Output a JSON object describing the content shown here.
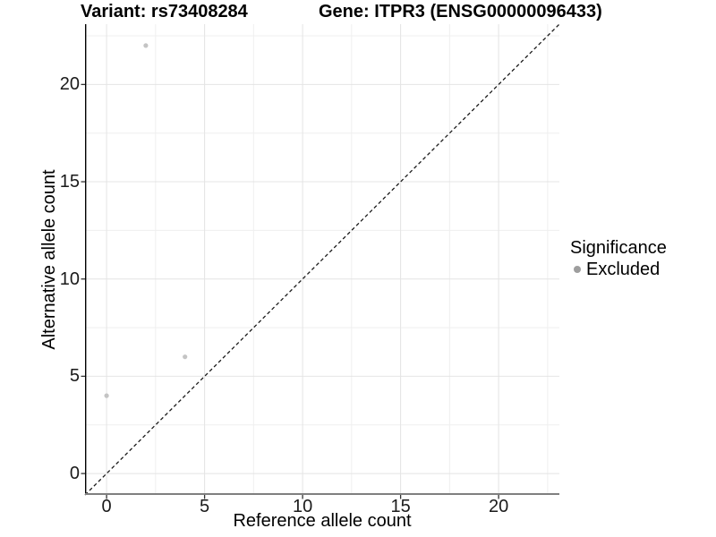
{
  "titles": {
    "left": "Variant: rs73408284",
    "right": "Gene: ITPR3 (ENSG00000096433)"
  },
  "axes": {
    "x_label": "Reference allele count",
    "y_label": "Alternative allele count"
  },
  "legend": {
    "title": "Significance",
    "items": [
      {
        "label": "Excluded",
        "color": "#9e9e9e"
      }
    ]
  },
  "chart_data": {
    "type": "scatter",
    "title": "Variant: rs73408284 / Gene: ITPR3 (ENSG00000096433)",
    "xlabel": "Reference allele count",
    "ylabel": "Alternative allele count",
    "xlim": [
      -1.1,
      23.1
    ],
    "ylim": [
      -1.1,
      23.1
    ],
    "x_ticks": [
      0,
      5,
      10,
      15,
      20
    ],
    "y_ticks": [
      0,
      5,
      10,
      15,
      20
    ],
    "x_minor_ticks": [
      2.5,
      7.5,
      12.5,
      17.5,
      22.5
    ],
    "y_minor_ticks": [
      2.5,
      7.5,
      12.5,
      17.5,
      22.5
    ],
    "grid": true,
    "legend_position": "right",
    "reference_line": {
      "type": "identity",
      "slope": 1,
      "intercept": 0,
      "style": "dashed"
    },
    "series": [
      {
        "name": "Excluded",
        "color": "#c4c4c4",
        "point_radius": 2.6,
        "points": [
          [
            0,
            4
          ],
          [
            4,
            6
          ],
          [
            2,
            22
          ]
        ]
      }
    ]
  },
  "colors": {
    "background": "#ffffff",
    "grid_major": "#e4e4e4",
    "grid_minor": "#efefef",
    "axis_line_y": "#000000",
    "axis_line_x": "#7f7f7f",
    "tick_mark": "#333333",
    "reference_line": "#1a1a1a",
    "point": "#c4c4c4",
    "legend_dot": "#9e9e9e"
  }
}
